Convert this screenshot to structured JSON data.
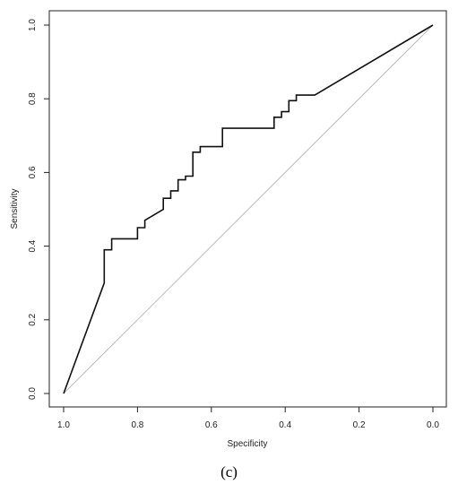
{
  "chart_data": {
    "type": "line",
    "xlabel": "Specificity",
    "ylabel": "Sensitivity",
    "xlim": [
      1.0,
      0.0
    ],
    "ylim": [
      0.0,
      1.0
    ],
    "x_ticks": [
      "1.0",
      "0.8",
      "0.6",
      "0.4",
      "0.2",
      "0.0"
    ],
    "y_ticks": [
      "0.0",
      "0.2",
      "0.4",
      "0.6",
      "0.8",
      "1.0"
    ],
    "grid": false,
    "reference_line": {
      "x": [
        1.0,
        0.0
      ],
      "y": [
        0.0,
        1.0
      ],
      "color": "#bbbbbb"
    },
    "series": [
      {
        "color": "#111111",
        "x": [
          1.0,
          0.89,
          0.89,
          0.87,
          0.87,
          0.8,
          0.8,
          0.78,
          0.78,
          0.73,
          0.73,
          0.71,
          0.71,
          0.69,
          0.69,
          0.67,
          0.67,
          0.65,
          0.65,
          0.63,
          0.63,
          0.61,
          0.61,
          0.57,
          0.57,
          0.43,
          0.43,
          0.41,
          0.41,
          0.39,
          0.39,
          0.37,
          0.37,
          0.32,
          0.0
        ],
        "y": [
          0.0,
          0.3,
          0.39,
          0.39,
          0.42,
          0.42,
          0.45,
          0.45,
          0.47,
          0.5,
          0.53,
          0.53,
          0.55,
          0.55,
          0.58,
          0.58,
          0.59,
          0.59,
          0.655,
          0.655,
          0.67,
          0.67,
          0.67,
          0.67,
          0.72,
          0.72,
          0.75,
          0.75,
          0.765,
          0.765,
          0.795,
          0.795,
          0.81,
          0.81,
          1.0
        ]
      }
    ]
  },
  "caption": "(c)"
}
